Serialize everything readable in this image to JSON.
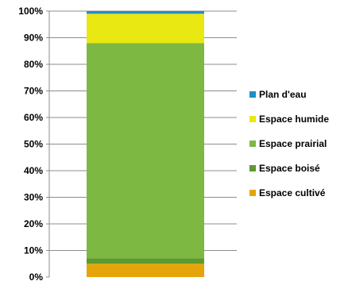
{
  "chart_data": {
    "type": "bar",
    "stacked": true,
    "percent_axis": true,
    "categories": [
      ""
    ],
    "series": [
      {
        "name": "Espace cultivé",
        "values": [
          5
        ],
        "color": "#E5A50A"
      },
      {
        "name": "Espace boisé",
        "values": [
          2
        ],
        "color": "#5E9A2E"
      },
      {
        "name": "Espace prairial",
        "values": [
          81
        ],
        "color": "#7DB843"
      },
      {
        "name": "Espace humide",
        "values": [
          11
        ],
        "color": "#EAE812"
      },
      {
        "name": "Plan d'eau",
        "values": [
          1
        ],
        "color": "#1F8FC7"
      }
    ],
    "ylim": [
      0,
      100
    ],
    "y_ticks": [
      "0%",
      "10%",
      "20%",
      "30%",
      "40%",
      "50%",
      "60%",
      "70%",
      "80%",
      "90%",
      "100%"
    ],
    "grid": true,
    "legend": "right",
    "legend_order": [
      "Plan d'eau",
      "Espace humide",
      "Espace prairial",
      "Espace boisé",
      "Espace cultivé"
    ]
  }
}
